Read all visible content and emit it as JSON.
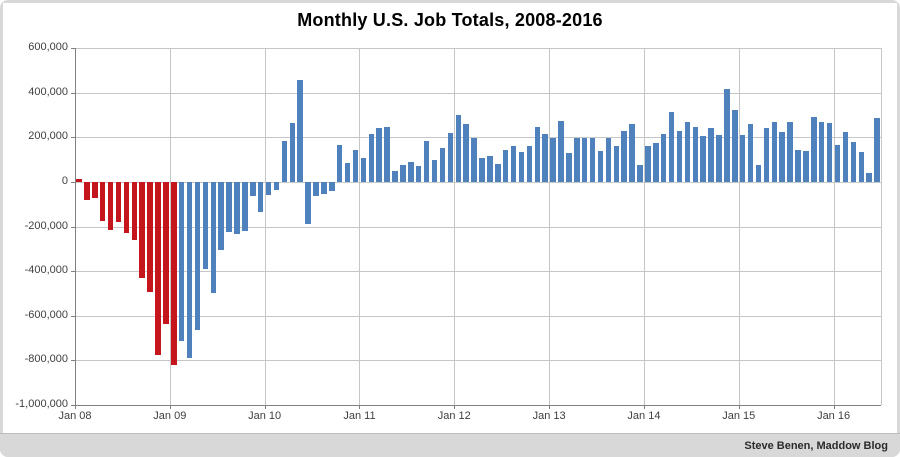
{
  "title": "Monthly U.S. Job Totals, 2008-2016",
  "attribution": "Steve Benen, Maddow Blog",
  "colors": {
    "bar_negative_era_red": "#c4161c",
    "bar_recovery_blue": "#4f81bd",
    "gridline": "#c6c6c6",
    "axis": "#808080",
    "label_text": "#404040",
    "frame_background": "#d8d8d8"
  },
  "y_axis": {
    "tick_labels": [
      "600,000",
      "400,000",
      "200,000",
      "0",
      "-200,000",
      "-400,000",
      "-600,000",
      "-800,000",
      "-1,000,000"
    ],
    "max": 600000,
    "min": -1000000,
    "step": 200000
  },
  "x_axis": {
    "tick_labels": [
      "Jan 08",
      "Jan 09",
      "Jan 10",
      "Jan 11",
      "Jan 12",
      "Jan 13",
      "Jan 14",
      "Jan 15",
      "Jan 16"
    ]
  },
  "chart_data": {
    "type": "bar",
    "title": "Monthly U.S. Job Totals, 2008-2016",
    "xlabel": "",
    "ylabel": "",
    "ylim": [
      -1000000,
      600000
    ],
    "grid": true,
    "legend": "none",
    "red_bar_count": 13,
    "months": [
      "Jan 08",
      "Feb 08",
      "Mar 08",
      "Apr 08",
      "May 08",
      "Jun 08",
      "Jul 08",
      "Aug 08",
      "Sep 08",
      "Oct 08",
      "Nov 08",
      "Dec 08",
      "Jan 09",
      "Feb 09",
      "Mar 09",
      "Apr 09",
      "May 09",
      "Jun 09",
      "Jul 09",
      "Aug 09",
      "Sep 09",
      "Oct 09",
      "Nov 09",
      "Dec 09",
      "Jan 10",
      "Feb 10",
      "Mar 10",
      "Apr 10",
      "May 10",
      "Jun 10",
      "Jul 10",
      "Aug 10",
      "Sep 10",
      "Oct 10",
      "Nov 10",
      "Dec 10",
      "Jan 11",
      "Feb 11",
      "Mar 11",
      "Apr 11",
      "May 11",
      "Jun 11",
      "Jul 11",
      "Aug 11",
      "Sep 11",
      "Oct 11",
      "Nov 11",
      "Dec 11",
      "Jan 12",
      "Feb 12",
      "Mar 12",
      "Apr 12",
      "May 12",
      "Jun 12",
      "Jul 12",
      "Aug 12",
      "Sep 12",
      "Oct 12",
      "Nov 12",
      "Dec 12",
      "Jan 13",
      "Feb 13",
      "Mar 13",
      "Apr 13",
      "May 13",
      "Jun 13",
      "Jul 13",
      "Aug 13",
      "Sep 13",
      "Oct 13",
      "Nov 13",
      "Dec 13",
      "Jan 14",
      "Feb 14",
      "Mar 14",
      "Apr 14",
      "May 14",
      "Jun 14",
      "Jul 14",
      "Aug 14",
      "Sep 14",
      "Oct 14",
      "Nov 14",
      "Dec 14",
      "Jan 15",
      "Feb 15",
      "Mar 15",
      "Apr 15",
      "May 15",
      "Jun 15",
      "Jul 15",
      "Aug 15",
      "Sep 15",
      "Oct 15",
      "Nov 15",
      "Dec 15",
      "Jan 16",
      "Feb 16",
      "Mar 16",
      "Apr 16",
      "May 16",
      "Jun 16"
    ],
    "values": [
      15000,
      -80000,
      -72000,
      -176000,
      -215000,
      -180000,
      -230000,
      -260000,
      -430000,
      -495000,
      -775000,
      -635000,
      -820000,
      -715000,
      -790000,
      -665000,
      -390000,
      -500000,
      -305000,
      -225000,
      -235000,
      -220000,
      -65000,
      -135000,
      -60000,
      -35000,
      185000,
      265000,
      455000,
      -190000,
      -65000,
      -55000,
      -40000,
      165000,
      85000,
      145000,
      105000,
      215000,
      240000,
      245000,
      50000,
      75000,
      90000,
      70000,
      185000,
      100000,
      150000,
      220000,
      300000,
      260000,
      195000,
      105000,
      115000,
      80000,
      145000,
      160000,
      135000,
      160000,
      245000,
      215000,
      195000,
      275000,
      130000,
      195000,
      195000,
      195000,
      140000,
      195000,
      160000,
      230000,
      260000,
      75000,
      160000,
      175000,
      215000,
      315000,
      230000,
      270000,
      245000,
      205000,
      240000,
      210000,
      415000,
      320000,
      210000,
      260000,
      75000,
      240000,
      270000,
      225000,
      270000,
      145000,
      140000,
      290000,
      270000,
      265000,
      165000,
      225000,
      180000,
      135000,
      40000,
      285000
    ]
  }
}
